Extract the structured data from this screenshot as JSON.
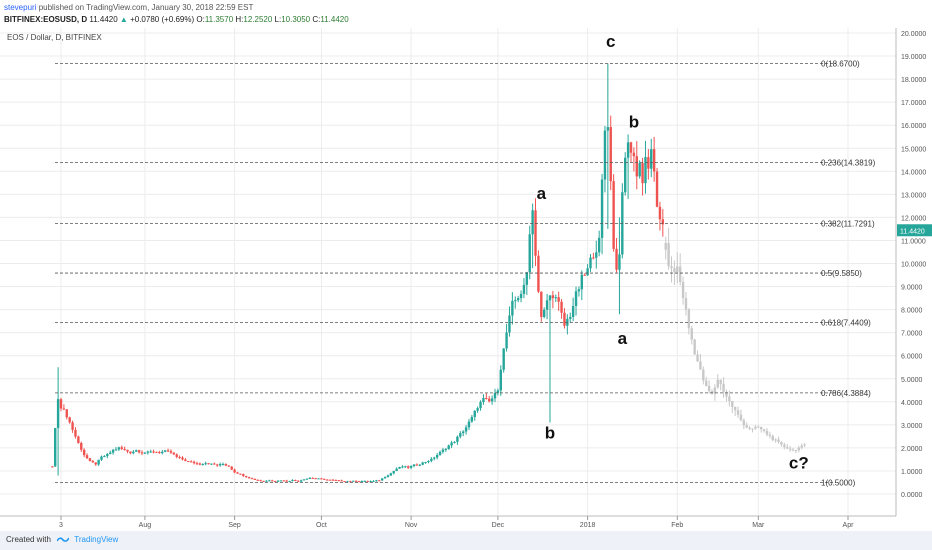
{
  "header": {
    "author": "stevepuri",
    "published_text": "published on TradingView.com, January 30, 2018 22:59 EST",
    "symbol": "BITFINEX:EOSUSD, D",
    "last": "11.4420",
    "arrow": "▲",
    "change": "+0.0780 (+0.69%)",
    "o_label": "O:",
    "o_value": "11.3570",
    "h_label": "H:",
    "h_value": "12.2520",
    "l_label": "L:",
    "l_value": "10.3050",
    "c_label": "C:",
    "c_value": "11.4420"
  },
  "footer": {
    "created_with": "Created with",
    "brand": "TradingView",
    "icon": "tradingview-logo-icon"
  },
  "chart_data": {
    "type": "candlestick",
    "title": "EOS / Dollar, D, BITFINEX",
    "ylim": [
      -1.3,
      20.0
    ],
    "y_ticks": [
      0,
      1,
      2,
      3,
      4,
      5,
      6,
      7,
      8,
      9,
      10,
      11,
      12,
      13,
      14,
      15,
      16,
      17,
      18,
      19,
      20
    ],
    "y_tick_labels": [
      "0.0000",
      "1.0000",
      "2.0000",
      "3.0000",
      "4.0000",
      "5.0000",
      "6.0000",
      "7.0000",
      "8.0000",
      "9.0000",
      "10.0000",
      "11.0000",
      "12.0000",
      "13.0000",
      "14.0000",
      "15.0000",
      "16.0000",
      "17.0000",
      "18.0000",
      "19.0000",
      "20.0000"
    ],
    "x_tick_labels": [
      "3",
      "Aug",
      "Sep",
      "Oct",
      "Nov",
      "Dec",
      "2018",
      "Feb",
      "Mar",
      "Apr"
    ],
    "x_tick_days": [
      0,
      29,
      60,
      90,
      121,
      151,
      182,
      213,
      241,
      272
    ],
    "last_price_label": "11.4420",
    "last_price": 11.442,
    "colors": {
      "up": "#26a69a",
      "down": "#ef5350",
      "projection": "#c8c8c8",
      "grid": "#ececec",
      "fib": "#555555",
      "last_label_bg": "#26a69a"
    },
    "fib_levels": [
      {
        "label": "0(18.6700)",
        "value": 18.67
      },
      {
        "label": "0.236(14.3819)",
        "value": 14.3819
      },
      {
        "label": "0.382(11.7291)",
        "value": 11.7291
      },
      {
        "label": "0.5(9.5850)",
        "value": 9.585
      },
      {
        "label": "0.618(7.4409)",
        "value": 7.4409
      },
      {
        "label": "0.786(4.3884)",
        "value": 4.3884
      },
      {
        "label": "1(0.5000)",
        "value": 0.5
      }
    ],
    "wave_labels": [
      {
        "text": "a",
        "day": 166,
        "value": 12.8
      },
      {
        "text": "b",
        "day": 169,
        "value": 2.4
      },
      {
        "text": "c",
        "day": 190,
        "value": 19.4
      },
      {
        "text": "b",
        "day": 198,
        "value": 15.9
      },
      {
        "text": "a",
        "day": 194,
        "value": 6.5
      },
      {
        "text": "c?",
        "day": 255,
        "value": 1.1
      }
    ],
    "price_path": [
      [
        -3,
        1.2
      ],
      [
        -2,
        2.8
      ],
      [
        -1,
        4.2
      ],
      [
        0,
        3.8
      ],
      [
        2,
        3.4
      ],
      [
        4,
        2.8
      ],
      [
        6,
        2.2
      ],
      [
        8,
        1.7
      ],
      [
        10,
        1.4
      ],
      [
        12,
        1.3
      ],
      [
        14,
        1.6
      ],
      [
        16,
        1.7
      ],
      [
        18,
        1.9
      ],
      [
        20,
        2.0
      ],
      [
        22,
        1.9
      ],
      [
        24,
        1.8
      ],
      [
        26,
        1.9
      ],
      [
        28,
        1.8
      ],
      [
        30,
        1.8
      ],
      [
        32,
        1.85
      ],
      [
        34,
        1.8
      ],
      [
        36,
        1.85
      ],
      [
        38,
        1.8
      ],
      [
        40,
        1.6
      ],
      [
        42,
        1.5
      ],
      [
        44,
        1.4
      ],
      [
        46,
        1.35
      ],
      [
        48,
        1.3
      ],
      [
        50,
        1.35
      ],
      [
        52,
        1.3
      ],
      [
        54,
        1.25
      ],
      [
        56,
        1.3
      ],
      [
        58,
        1.2
      ],
      [
        60,
        0.95
      ],
      [
        62,
        0.85
      ],
      [
        64,
        0.75
      ],
      [
        66,
        0.65
      ],
      [
        68,
        0.6
      ],
      [
        70,
        0.55
      ],
      [
        72,
        0.6
      ],
      [
        74,
        0.55
      ],
      [
        76,
        0.6
      ],
      [
        78,
        0.55
      ],
      [
        80,
        0.6
      ],
      [
        82,
        0.55
      ],
      [
        84,
        0.65
      ],
      [
        86,
        0.7
      ],
      [
        88,
        0.68
      ],
      [
        90,
        0.65
      ],
      [
        92,
        0.62
      ],
      [
        94,
        0.6
      ],
      [
        96,
        0.58
      ],
      [
        98,
        0.56
      ],
      [
        100,
        0.55
      ],
      [
        102,
        0.57
      ],
      [
        104,
        0.56
      ],
      [
        106,
        0.55
      ],
      [
        108,
        0.56
      ],
      [
        110,
        0.6
      ],
      [
        112,
        0.75
      ],
      [
        114,
        0.9
      ],
      [
        116,
        1.1
      ],
      [
        118,
        1.2
      ],
      [
        120,
        1.15
      ],
      [
        122,
        1.25
      ],
      [
        124,
        1.3
      ],
      [
        126,
        1.4
      ],
      [
        128,
        1.5
      ],
      [
        130,
        1.7
      ],
      [
        132,
        1.9
      ],
      [
        134,
        2.1
      ],
      [
        136,
        2.3
      ],
      [
        138,
        2.6
      ],
      [
        140,
        2.9
      ],
      [
        142,
        3.3
      ],
      [
        144,
        3.8
      ],
      [
        146,
        4.1
      ],
      [
        148,
        4.0
      ],
      [
        150,
        4.3
      ],
      [
        151,
        4.6
      ],
      [
        152,
        5.5
      ],
      [
        154,
        7.0
      ],
      [
        156,
        8.2
      ],
      [
        158,
        8.6
      ],
      [
        160,
        8.9
      ],
      [
        161,
        9.6
      ],
      [
        162,
        11.5
      ],
      [
        163,
        12.3
      ],
      [
        164,
        10.5
      ],
      [
        165,
        8.8
      ],
      [
        166,
        7.6
      ],
      [
        167,
        7.9
      ],
      [
        168,
        8.4
      ],
      [
        170,
        8.7
      ],
      [
        172,
        8.2
      ],
      [
        174,
        7.3
      ],
      [
        176,
        7.8
      ],
      [
        178,
        8.6
      ],
      [
        180,
        9.3
      ],
      [
        182,
        9.7
      ],
      [
        184,
        10.5
      ],
      [
        186,
        10.9
      ],
      [
        187,
        13.5
      ],
      [
        188,
        15.8
      ],
      [
        189,
        16.2
      ],
      [
        190,
        13.5
      ],
      [
        191,
        10.8
      ],
      [
        192,
        9.7
      ],
      [
        193,
        10.6
      ],
      [
        194,
        12.8
      ],
      [
        195,
        14.5
      ],
      [
        196,
        15.4
      ],
      [
        197,
        14.6
      ],
      [
        198,
        14.9
      ],
      [
        199,
        13.8
      ],
      [
        200,
        14.3
      ],
      [
        201,
        13.7
      ],
      [
        202,
        14.6
      ],
      [
        203,
        14.2
      ],
      [
        204,
        14.7
      ],
      [
        205,
        13.9
      ],
      [
        206,
        12.6
      ],
      [
        207,
        11.7
      ],
      [
        208,
        11.44
      ]
    ],
    "projection_path": [
      [
        209,
        10.6
      ],
      [
        211,
        9.6
      ],
      [
        213,
        9.8
      ],
      [
        215,
        8.6
      ],
      [
        217,
        7.2
      ],
      [
        219,
        6.2
      ],
      [
        221,
        5.3
      ],
      [
        223,
        4.6
      ],
      [
        225,
        4.3
      ],
      [
        227,
        5.0
      ],
      [
        229,
        4.5
      ],
      [
        231,
        4.0
      ],
      [
        233,
        3.6
      ],
      [
        235,
        3.2
      ],
      [
        237,
        2.9
      ],
      [
        239,
        2.8
      ],
      [
        241,
        2.9
      ],
      [
        243,
        2.7
      ],
      [
        245,
        2.5
      ],
      [
        247,
        2.3
      ],
      [
        249,
        2.1
      ],
      [
        251,
        2.0
      ],
      [
        253,
        1.9
      ],
      [
        255,
        2.0
      ],
      [
        257,
        2.1
      ]
    ],
    "extremes": [
      {
        "day": -1,
        "high": 5.5,
        "low": 0.8
      },
      {
        "day": 163,
        "high": 12.6,
        "low": 9.8
      },
      {
        "day": 169,
        "high": 8.6,
        "low": 3.1
      },
      {
        "day": 189,
        "high": 18.67,
        "low": 11.5
      },
      {
        "day": 193,
        "high": 12.0,
        "low": 7.8
      },
      {
        "day": 196,
        "high": 15.6,
        "low": 12.8
      }
    ]
  }
}
